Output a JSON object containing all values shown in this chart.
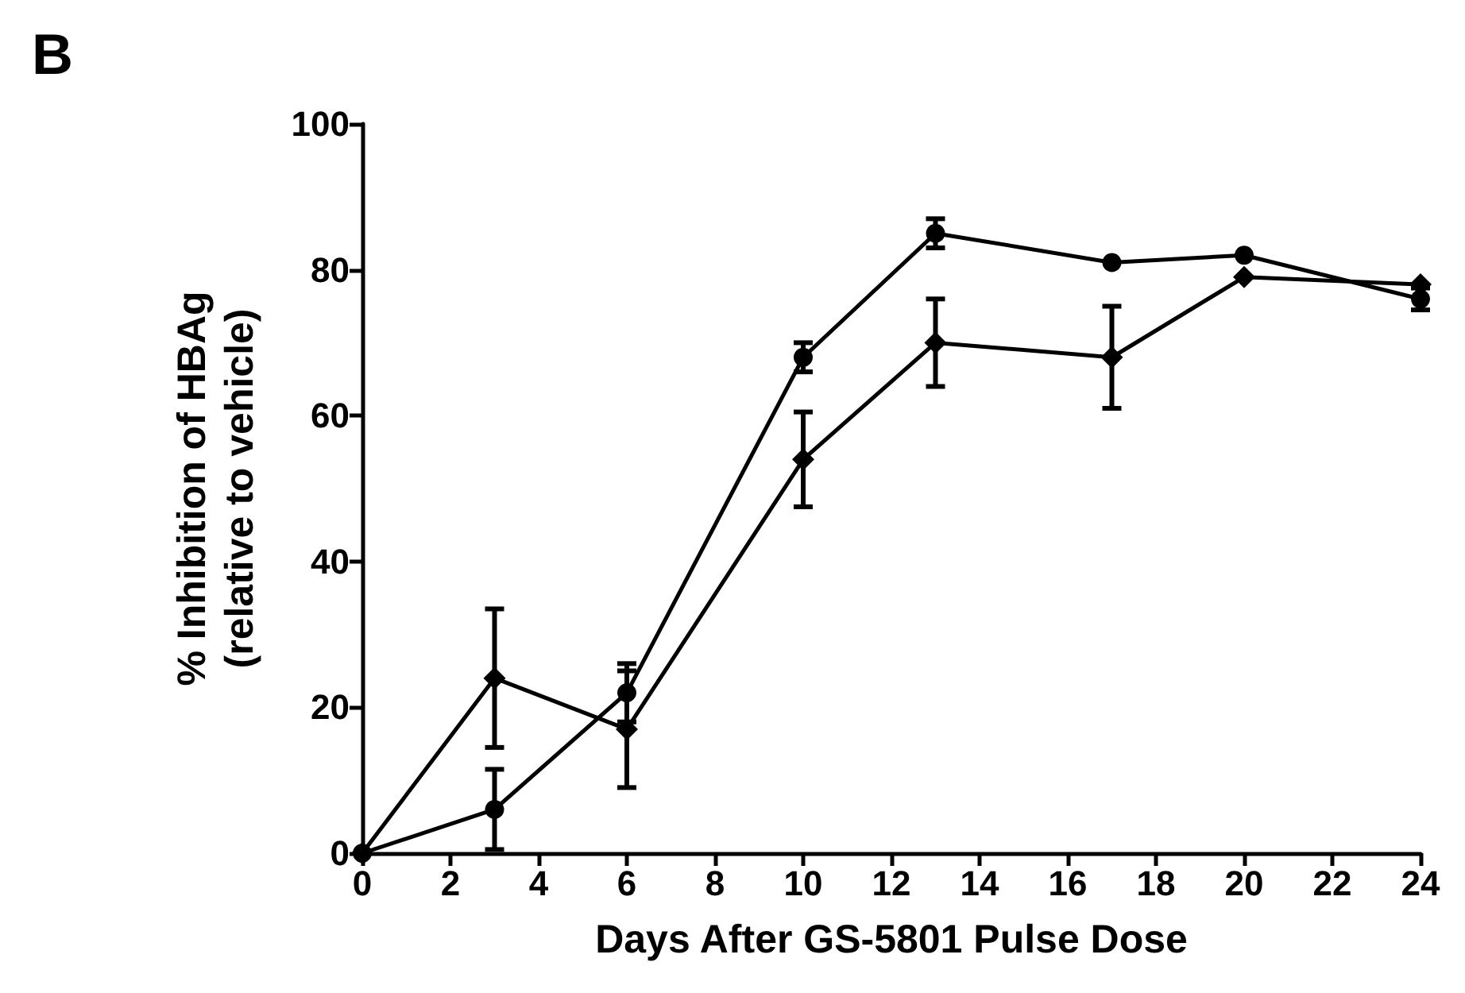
{
  "chart_data": {
    "type": "line",
    "xlabel": "Days After GS-5801 Pulse Dose",
    "ylabel": "% Inhibition of HBAg\n(relative to vehicle)",
    "annotations": [
      "B"
    ],
    "x": [
      0,
      3,
      6,
      10,
      13,
      17,
      20,
      24
    ],
    "series": [
      {
        "color": "#000000",
        "marker": "circle",
        "values": [
          0,
          6,
          22,
          68,
          85,
          81,
          82,
          76
        ],
        "errors": [
          null,
          5.5,
          4,
          2,
          2,
          null,
          null,
          1.5
        ]
      },
      {
        "color": "#000000",
        "marker": "diamond",
        "values": [
          0,
          24,
          17,
          54,
          70,
          68,
          79,
          78
        ],
        "errors": [
          null,
          9.5,
          8,
          6.5,
          6,
          7,
          null,
          null
        ]
      }
    ],
    "xlim": [
      0,
      24
    ],
    "xticks": [
      0,
      2,
      4,
      6,
      8,
      10,
      12,
      14,
      16,
      18,
      20,
      22,
      24
    ],
    "ylim": [
      0,
      100
    ],
    "yticks": [
      0,
      20,
      40,
      60,
      80,
      100
    ],
    "grid": false,
    "line_style": "solid"
  }
}
